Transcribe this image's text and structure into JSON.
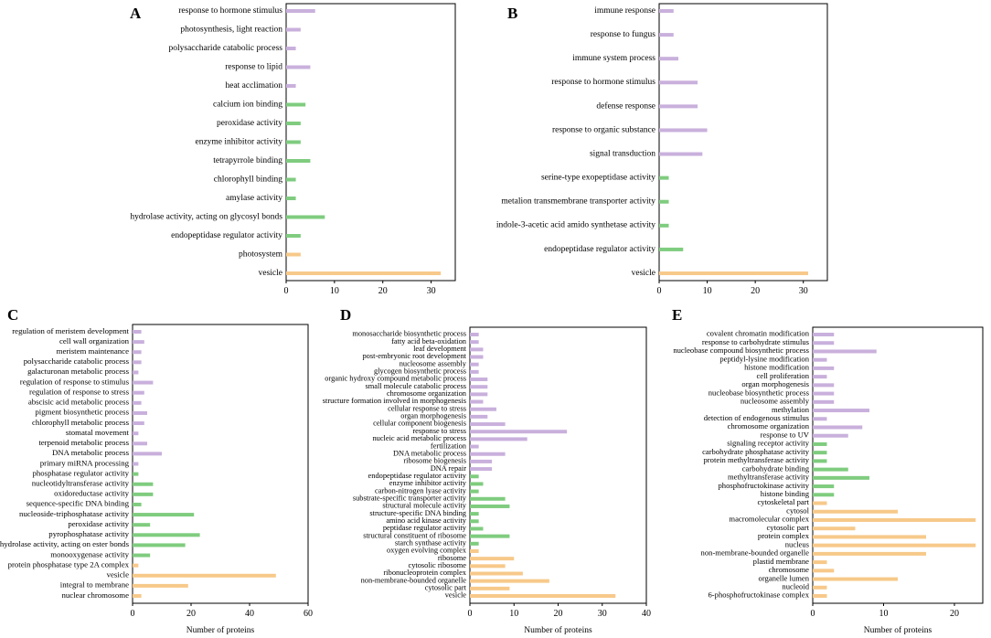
{
  "colors": {
    "bp": "#c9b0dc",
    "mf": "#7fcc7f",
    "cc": "#f7c98a",
    "axis": "#000000",
    "text": "#000000"
  },
  "chart_data": [
    {
      "panel": "A",
      "type": "bar",
      "orientation": "horizontal",
      "xlabel": "",
      "xlim": [
        0,
        35
      ],
      "xticks": [
        0,
        10,
        20,
        30
      ],
      "categories": [
        "response to hormone stimulus",
        "photosynthesis, light reaction",
        "polysaccharide catabolic process",
        "response to lipid",
        "heat acclimation",
        "calcium ion binding",
        "peroxidase activity",
        "enzyme inhibitor activity",
        "tetrapyrrole binding",
        "chlorophyll binding",
        "amylase activity",
        "hydrolase activity, acting on glycosyl bonds",
        "endopeptidase regulator activity",
        "photosystem",
        "vesicle"
      ],
      "values": [
        6,
        3,
        2,
        5,
        2,
        4,
        3,
        3,
        5,
        2,
        2,
        8,
        3,
        3,
        32
      ],
      "groups": [
        "bp",
        "bp",
        "bp",
        "bp",
        "bp",
        "mf",
        "mf",
        "mf",
        "mf",
        "mf",
        "mf",
        "mf",
        "mf",
        "cc",
        "cc"
      ]
    },
    {
      "panel": "B",
      "type": "bar",
      "orientation": "horizontal",
      "xlabel": "",
      "xlim": [
        0,
        35
      ],
      "xticks": [
        0,
        10,
        20,
        30
      ],
      "categories": [
        "immune response",
        "response to fungus",
        "immune system process",
        "response to hormone stimulus",
        "defense response",
        "response to organic substance",
        "signal transduction",
        "serine-type exopeptidase activity",
        "metalion transmembrane transporter activity",
        "indole-3-acetic acid amido synthetase activity",
        "endopeptidase regulator activity",
        "vesicle"
      ],
      "values": [
        3,
        3,
        4,
        8,
        8,
        10,
        9,
        2,
        2,
        2,
        5,
        31
      ],
      "groups": [
        "bp",
        "bp",
        "bp",
        "bp",
        "bp",
        "bp",
        "bp",
        "mf",
        "mf",
        "mf",
        "mf",
        "cc"
      ]
    },
    {
      "panel": "C",
      "type": "bar",
      "orientation": "horizontal",
      "xlabel": "Number of proteins",
      "xlim": [
        0,
        60
      ],
      "xticks": [
        0,
        20,
        40,
        60
      ],
      "categories": [
        "regulation of meristem development",
        "cell wall organization",
        "meristem maintenance",
        "polysaccharide catabolic process",
        "galacturonan metabolic process",
        "regulation of response to stimulus",
        "regulation of response to stress",
        "abscisic acid metabolic process",
        "pigment biosynthetic process",
        "chlorophyll metabolic process",
        "stomatal movement",
        "terpenoid metabolic process",
        "DNA metabolic process",
        "primary miRNA processing",
        "phosphatase regulator activity",
        "nucleotidyltransferase activity",
        "oxidoreductase activity",
        "sequence-specific DNA binding",
        "nucleoside-triphosphatase activity",
        "peroxidase activity",
        "pyrophosphatase activity",
        "hydrolase activity, acting on ester bonds",
        "monooxygenase activity",
        "protein phosphatase type 2A complex",
        "vesicle",
        "integral to membrane",
        "nuclear chromosome"
      ],
      "values": [
        3,
        4,
        3,
        3,
        2,
        7,
        4,
        3,
        5,
        4,
        2,
        5,
        10,
        2,
        2,
        7,
        7,
        3,
        21,
        6,
        23,
        18,
        6,
        2,
        49,
        19,
        3
      ],
      "groups": [
        "bp",
        "bp",
        "bp",
        "bp",
        "bp",
        "bp",
        "bp",
        "bp",
        "bp",
        "bp",
        "bp",
        "bp",
        "bp",
        "bp",
        "mf",
        "mf",
        "mf",
        "mf",
        "mf",
        "mf",
        "mf",
        "mf",
        "mf",
        "cc",
        "cc",
        "cc",
        "cc"
      ]
    },
    {
      "panel": "D",
      "type": "bar",
      "orientation": "horizontal",
      "xlabel": "Number of proteins",
      "xlim": [
        0,
        40
      ],
      "xticks": [
        0,
        10,
        20,
        30,
        40
      ],
      "categories": [
        "monosaccharide biosynthetic process",
        "fatty acid beta-oxidation",
        "leaf development",
        "post-embryonic root development",
        "nucleosome assembly",
        "glycogen biosynthetic process",
        "organic hydroxy compound metabolic process",
        "small molecule catabolic process",
        "chromosome organization",
        "structure formation involved in morphogenesis",
        "cellular response to stress",
        "organ morphogenesis",
        "cellular component biogenesis",
        "response to stress",
        "nucleic acid metabolic process",
        "fertilization",
        "DNA metabolic process",
        "ribosome biogenesis",
        "DNA repair",
        "endopeptidase regulator activity",
        "enzyme inhibitor activity",
        "carbon-nitrogen lyase activity",
        "substrate-specific transporter activity",
        "structural molecule activity",
        "structure-specific DNA binding",
        "amino acid kinase activity",
        "peptidase regulator activity",
        "structural constituent of ribosome",
        "starch synthase activity",
        "oxygen evolving complex",
        "ribosome",
        "cytosolic ribosome",
        "ribonucleoprotein complex",
        "non-membrane-bounded organelle",
        "cytosolic part",
        "vesicle"
      ],
      "values": [
        2,
        2,
        3,
        3,
        2,
        2,
        4,
        4,
        4,
        3,
        6,
        4,
        8,
        22,
        13,
        2,
        8,
        5,
        5,
        2,
        3,
        2,
        8,
        9,
        2,
        2,
        3,
        9,
        2,
        2,
        10,
        8,
        12,
        18,
        9,
        33
      ],
      "groups": [
        "bp",
        "bp",
        "bp",
        "bp",
        "bp",
        "bp",
        "bp",
        "bp",
        "bp",
        "bp",
        "bp",
        "bp",
        "bp",
        "bp",
        "bp",
        "bp",
        "bp",
        "bp",
        "bp",
        "mf",
        "mf",
        "mf",
        "mf",
        "mf",
        "mf",
        "mf",
        "mf",
        "mf",
        "mf",
        "cc",
        "cc",
        "cc",
        "cc",
        "cc",
        "cc",
        "cc"
      ]
    },
    {
      "panel": "E",
      "type": "bar",
      "orientation": "horizontal",
      "xlabel": "Number of proteins",
      "xlim": [
        0,
        24
      ],
      "xticks": [
        0,
        10,
        20
      ],
      "categories": [
        "covalent chromatin modification",
        "response to carbohydrate stimulus",
        "nucleobase compound biosynthetic process",
        "peptidyl-lysine modification",
        "histone modification",
        "cell proliferation",
        "organ morphogenesis",
        "nucleobase biosynthetic process",
        "nucleosome assembly",
        "methylation",
        "detection of endogenous stimulus",
        "chromosome organization",
        "response to UV",
        "signaling receptor activity",
        "carbohydrate phosphatase activity",
        "protein methyltransferase activity",
        "carbohydrate binding",
        "methyltransferase activity",
        "phosphofructokinase activity",
        "histone binding",
        "cytoskeletal part",
        "cytosol",
        "macromolecular complex",
        "cytosolic part",
        "protein complex",
        "nucleus",
        "non-membrane-bounded organelle",
        "plastid membrane",
        "chromosome",
        "organelle lumen",
        "nucleoid",
        "6-phosphofructokinase complex"
      ],
      "values": [
        3,
        3,
        9,
        2,
        3,
        2,
        3,
        3,
        3,
        8,
        2,
        7,
        5,
        2,
        2,
        2,
        5,
        8,
        3,
        3,
        2,
        12,
        23,
        6,
        16,
        23,
        16,
        2,
        3,
        12,
        2,
        2
      ],
      "groups": [
        "bp",
        "bp",
        "bp",
        "bp",
        "bp",
        "bp",
        "bp",
        "bp",
        "bp",
        "bp",
        "bp",
        "bp",
        "bp",
        "mf",
        "mf",
        "mf",
        "mf",
        "mf",
        "mf",
        "mf",
        "cc",
        "cc",
        "cc",
        "cc",
        "cc",
        "cc",
        "cc",
        "cc",
        "cc",
        "cc",
        "cc",
        "cc"
      ]
    }
  ]
}
